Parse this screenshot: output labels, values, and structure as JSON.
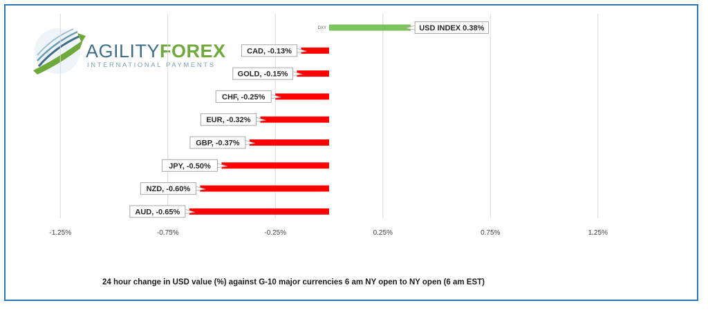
{
  "logo": {
    "word_main": "AGILITY",
    "word_accent": "FOREX",
    "subtitle": "INTERNATIONAL PAYMENTS"
  },
  "caption": "24 hour change in  USD value (%)  against  G-10 major currencies 6 am NY open to NY open  (6 am EST)",
  "colors": {
    "negative": "#ff0000",
    "positive": "#7cc35d",
    "frame": "#2e75b6"
  },
  "chart_data": {
    "type": "bar",
    "orientation": "horizontal",
    "xlim": [
      -1.5,
      1.5
    ],
    "xticks": [
      -1.25,
      -0.75,
      -0.25,
      0.25,
      0.75,
      1.25
    ],
    "xtick_labels": [
      "-1.25%",
      "-0.75%",
      "-0.25%",
      "0.25%",
      "0.75%",
      "1.25%"
    ],
    "grid": true,
    "legend": "none",
    "categories": [
      "DXY",
      "CAD",
      "GOLD",
      "CHF",
      "EUR",
      "GBP",
      "JPY",
      "NZD",
      "AUD"
    ],
    "values": [
      0.38,
      -0.13,
      -0.15,
      -0.25,
      -0.32,
      -0.37,
      -0.5,
      -0.6,
      -0.65
    ],
    "category_labels": [
      "DXY",
      "",
      "",
      "",
      "",
      "",
      "",
      "",
      ""
    ],
    "data_labels": [
      "USD INDEX 0.38%",
      "CAD, -0.13%",
      "GOLD, -0.15%",
      "CHF, -0.25%",
      "EUR, -0.32%",
      "GBP, -0.37%",
      "JPY, -0.50%",
      "NZD, -0.60%",
      "AUD, -0.65%"
    ]
  }
}
